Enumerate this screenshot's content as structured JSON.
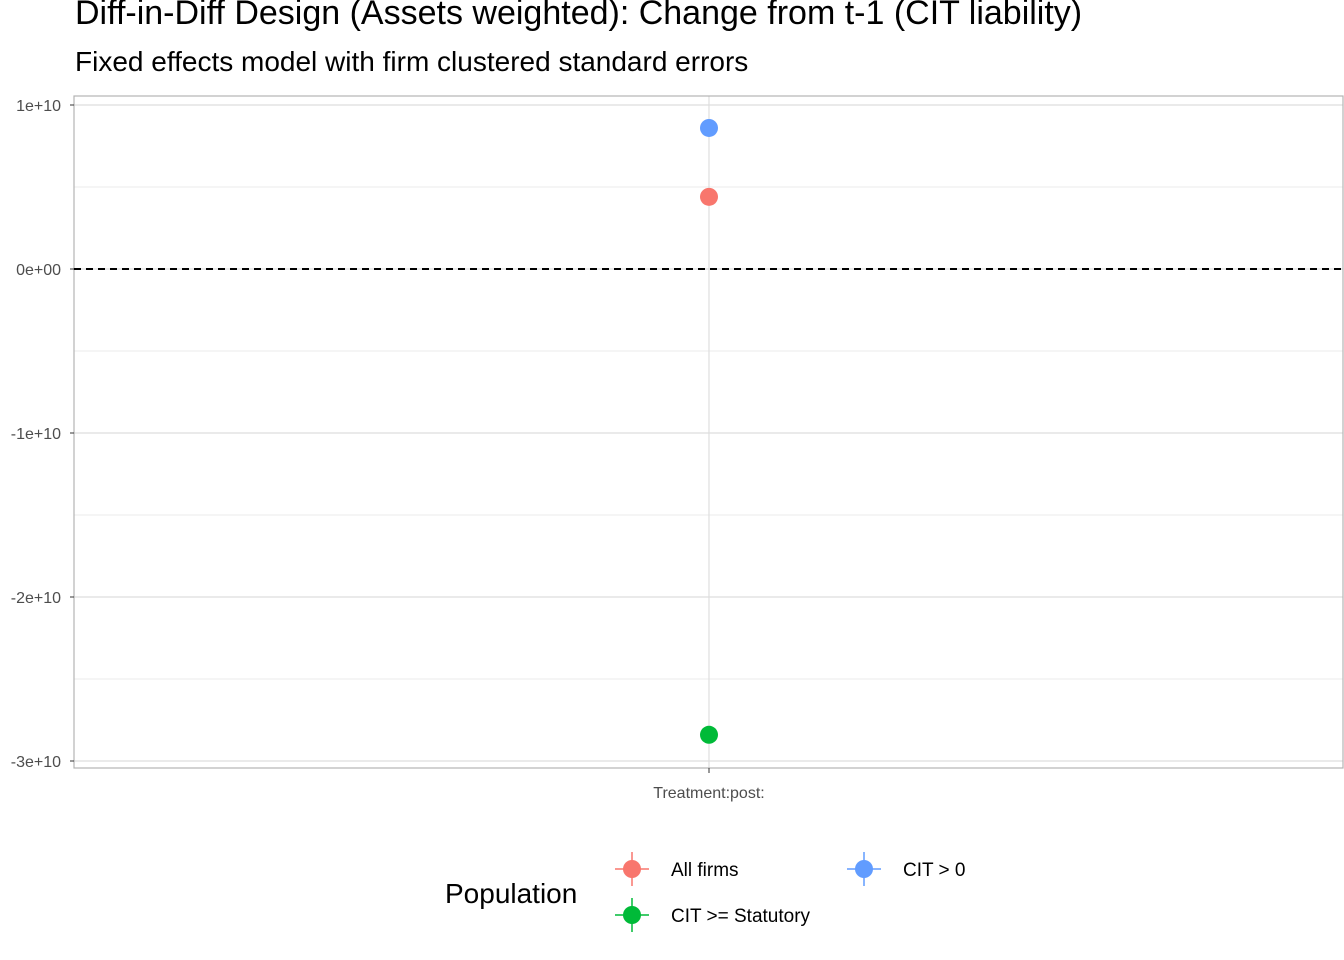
{
  "chart_data": {
    "type": "scatter",
    "title": "Diff-in-Diff Design (Assets weighted): Change from t-1 (CIT liability)",
    "subtitle": "Fixed effects model with firm clustered standard errors",
    "xlabel": "",
    "ylabel": "",
    "categories": [
      "Treatment:post:"
    ],
    "ylim": [
      -30000000000,
      10000000000
    ],
    "y_ticks": [
      10000000000,
      0,
      -10000000000,
      -20000000000,
      -30000000000
    ],
    "y_tick_labels": [
      "1e+10",
      "0e+00",
      "-1e+10",
      "-2e+10",
      "-3e+10"
    ],
    "reference_line": {
      "y": 0,
      "style": "dashed"
    },
    "grid": true,
    "legend": {
      "title": "Population",
      "position": "bottom"
    },
    "series": [
      {
        "name": "All firms",
        "color": "#F8766D",
        "values": [
          4400000000
        ]
      },
      {
        "name": "CIT >= Statutory",
        "color": "#00BA38",
        "values": [
          -28400000000
        ]
      },
      {
        "name": "CIT > 0",
        "color": "#619CFF",
        "values": [
          8600000000
        ]
      }
    ]
  }
}
